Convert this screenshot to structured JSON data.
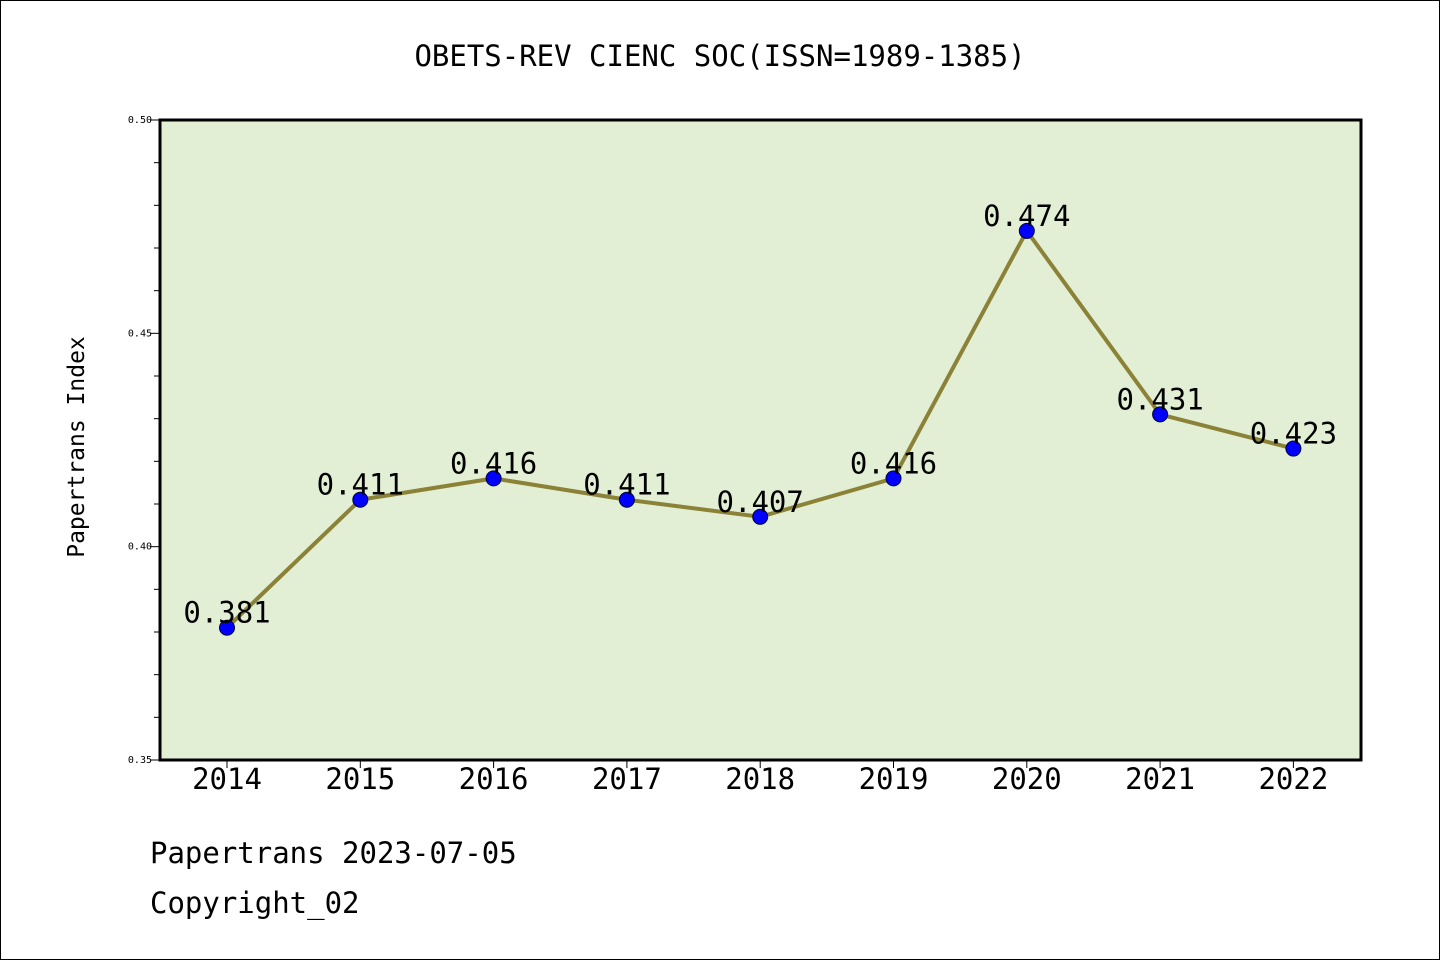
{
  "chart_data": {
    "type": "line",
    "title": "OBETS-REV CIENC SOC(ISSN=1989-1385)",
    "xlabel": "",
    "ylabel": "Papertrans Index",
    "categories": [
      "2014",
      "2015",
      "2016",
      "2017",
      "2018",
      "2019",
      "2020",
      "2021",
      "2022"
    ],
    "values": [
      0.381,
      0.411,
      0.416,
      0.411,
      0.407,
      0.416,
      0.474,
      0.431,
      0.423
    ],
    "data_labels": [
      "0.381",
      "0.411",
      "0.416",
      "0.411",
      "0.407",
      "0.416",
      "0.474",
      "0.431",
      "0.423"
    ],
    "ylim": [
      0.35,
      0.5
    ],
    "yticks": [
      0.35,
      0.4,
      0.45,
      0.5
    ],
    "ytick_labels": [
      "0.35",
      "0.40",
      "0.45",
      "0.50"
    ],
    "grid": false,
    "legend": "none",
    "colors": {
      "plot_background": "#e2efd4",
      "line": "#8b8237",
      "marker": "#0000ff"
    }
  },
  "footer": {
    "date_line": "Papertrans 2023-07-05",
    "copyright_line": "Copyright_02"
  }
}
